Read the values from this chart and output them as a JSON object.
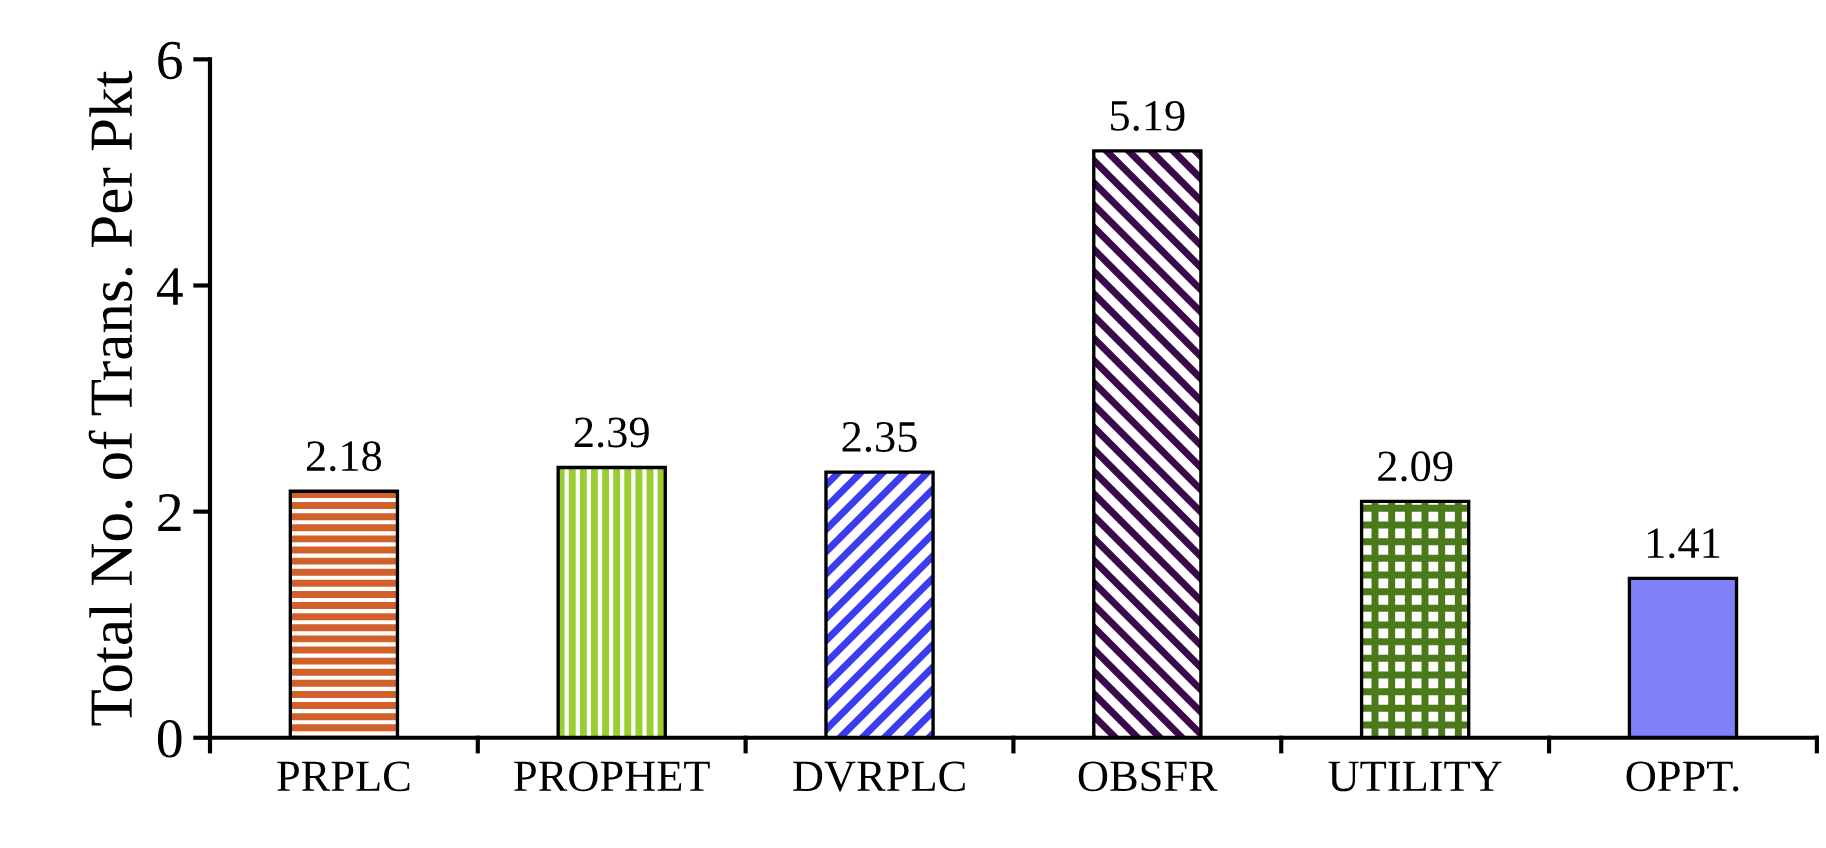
{
  "chart_data": {
    "type": "bar",
    "ylabel": "Total No. of Trans. Per Pkt",
    "categories": [
      "PRPLC",
      "PROPHET",
      "DVRPLC",
      "OBSFR",
      "UTILITY",
      "OPPT."
    ],
    "values": [
      2.18,
      2.39,
      2.35,
      5.19,
      2.09,
      1.41
    ],
    "colors": [
      "#d2602a",
      "#9acd32",
      "#3b3bf0",
      "#3a0a4a",
      "#4a7a1a",
      "#8080f8"
    ],
    "ylim": [
      0,
      6
    ],
    "yticks": [
      0,
      2,
      4,
      6
    ],
    "data_labels": true,
    "grid": false,
    "legend": false
  }
}
